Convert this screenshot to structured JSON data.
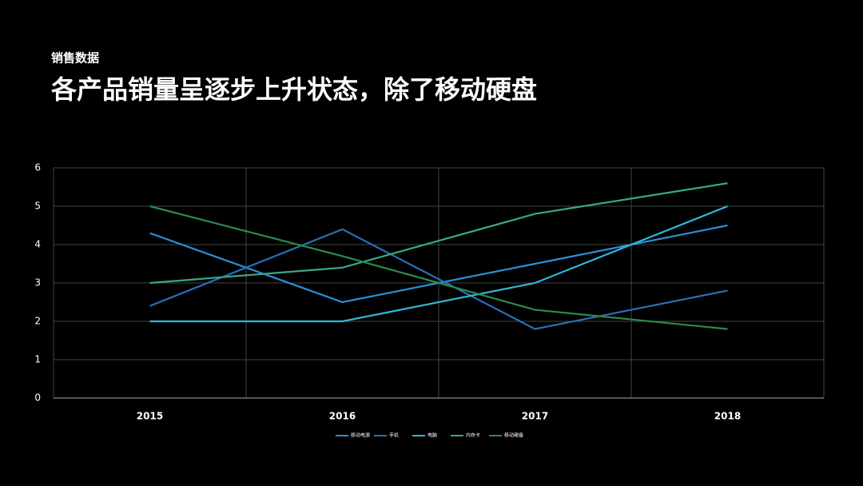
{
  "header": {
    "subtitle": "销售数据",
    "title": "各产品销量呈逐步上升状态，除了移动硬盘"
  },
  "chart_data": {
    "type": "line",
    "categories": [
      "2015",
      "2016",
      "2017",
      "2018"
    ],
    "series": [
      {
        "name": "移动电源",
        "color": "#2b8fd6",
        "values": [
          4.3,
          2.5,
          3.5,
          4.5
        ]
      },
      {
        "name": "手机",
        "color": "#2a6fb8",
        "values": [
          2.4,
          4.4,
          1.8,
          2.8
        ]
      },
      {
        "name": "电脑",
        "color": "#2fb8d8",
        "values": [
          2,
          2,
          3,
          5
        ]
      },
      {
        "name": "内存卡",
        "color": "#3aa88a",
        "values": [
          3,
          3.4,
          4.8,
          5.6
        ]
      },
      {
        "name": "移动硬盘",
        "color": "#2e8a4e",
        "values": [
          5,
          3.7,
          2.3,
          1.8
        ]
      }
    ],
    "ylim": [
      0,
      6
    ],
    "yticks": [
      0,
      1,
      2,
      3,
      4,
      5,
      6
    ],
    "grid": true
  }
}
